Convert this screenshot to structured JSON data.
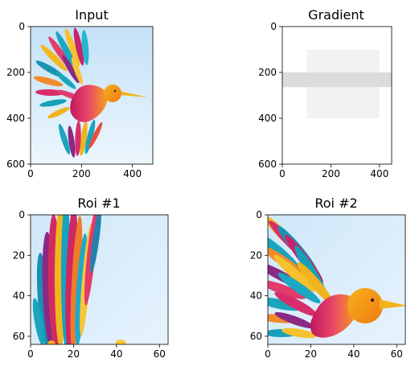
{
  "figure": {
    "background": "#ffffff",
    "panel_count": 4
  },
  "chart_data": [
    {
      "type": "image",
      "title": "Input",
      "xlim": [
        0,
        480
      ],
      "ylim": [
        600,
        0
      ],
      "xticks": [
        0,
        200,
        400
      ],
      "yticks": [
        0,
        200,
        400,
        600
      ],
      "colors": {
        "sky_top": "#c7e3f8",
        "sky_bottom": "#eaf5fd"
      },
      "content": "hummingbird illustration"
    },
    {
      "type": "image",
      "title": "Gradient",
      "xlim": [
        0,
        450
      ],
      "ylim": [
        600,
        0
      ],
      "xticks": [
        0,
        200,
        400
      ],
      "yticks": [
        0,
        200,
        400,
        600
      ],
      "regions": [
        {
          "x0": 100,
          "x1": 400,
          "y0": 100,
          "y1": 400,
          "color": "#f2f2f2"
        },
        {
          "x0": 0,
          "x1": 450,
          "y0": 200,
          "y1": 264,
          "color": "#dcdcdc"
        }
      ]
    },
    {
      "type": "image",
      "title": "Roi #1",
      "xlim": [
        0,
        64
      ],
      "ylim": [
        64,
        0
      ],
      "xticks": [
        0,
        20,
        40,
        60
      ],
      "yticks": [
        0,
        20,
        40,
        60
      ],
      "content": "wing feathers crop"
    },
    {
      "type": "image",
      "title": "Roi #2",
      "xlim": [
        0,
        64
      ],
      "ylim": [
        64,
        0
      ],
      "xticks": [
        0,
        20,
        40,
        60
      ],
      "yticks": [
        0,
        20,
        40,
        60
      ],
      "content": "bird head crop"
    }
  ]
}
